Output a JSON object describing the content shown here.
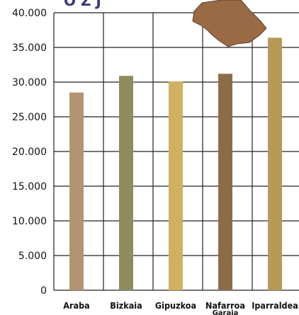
{
  "chart_data": {
    "type": "bar",
    "categories": [
      "Araba",
      "Bizkaia",
      "Gipuzkoa",
      "Nafarroa",
      "Iparraldea"
    ],
    "category_sublabels": [
      "",
      "",
      "",
      "Garaia",
      ""
    ],
    "values": [
      28500,
      30900,
      30100,
      31200,
      36400
    ],
    "bar_colors": [
      "#b39470",
      "#8e8c5c",
      "#cfb160",
      "#8c6c48",
      "#b89a58"
    ],
    "yticks": [
      "0",
      "5.000",
      "10.000",
      "15.000",
      "20.000",
      "25.000",
      "30.000",
      "35.000",
      "40.000"
    ],
    "ylim": [
      0,
      40000
    ],
    "grid": true,
    "title": "",
    "xlabel": "",
    "ylabel": ""
  },
  "decoration": {
    "map_icon": "basque-country-map-icon",
    "map_color": "#9a6a44",
    "title_fragment": "O  Z  J"
  }
}
